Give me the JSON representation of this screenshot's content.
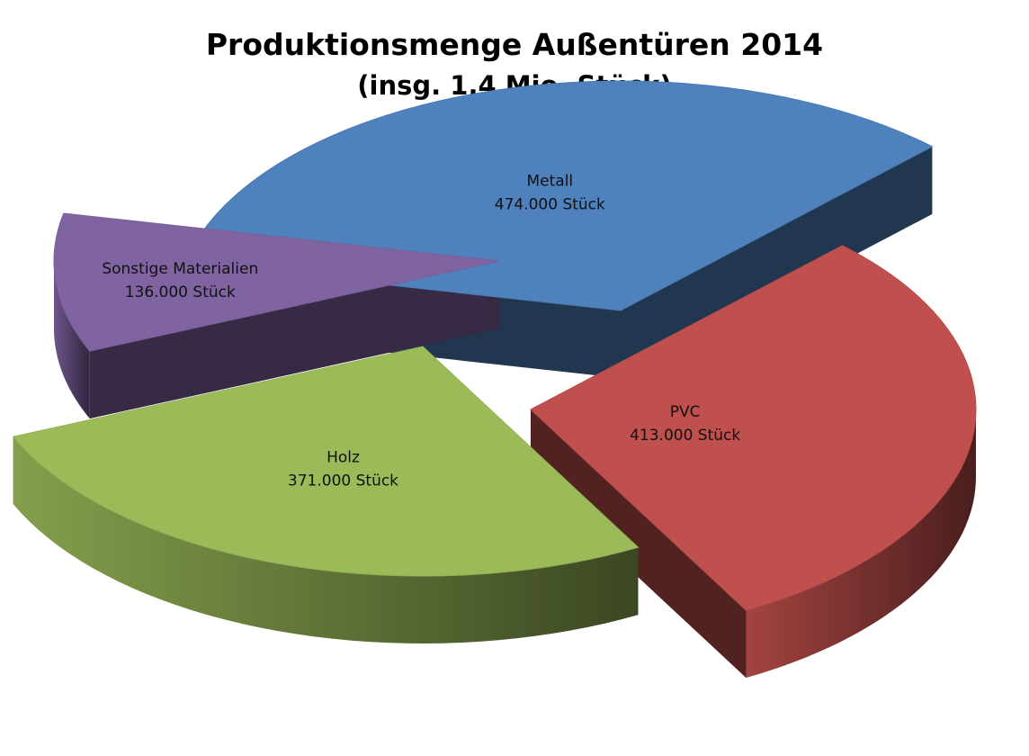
{
  "chart_data": {
    "type": "pie",
    "title": "Produktionsmenge Außentüren 2014",
    "subtitle": "(insg. 1,4 Mio. Stück)",
    "slices": [
      {
        "id": "metall",
        "name": "Metall",
        "value": 474000,
        "value_label": "474.000 Stück",
        "color": "#4f81bd"
      },
      {
        "id": "pvc",
        "name": "PVC",
        "value": 413000,
        "value_label": "413.000 Stück",
        "color": "#c0504d"
      },
      {
        "id": "holz",
        "name": "Holz",
        "value": 371000,
        "value_label": "371.000 Stück",
        "color": "#9bbb59"
      },
      {
        "id": "sonstige",
        "name": "Sonstige Materialien",
        "value": 136000,
        "value_label": "136.000 Stück",
        "color": "#8064a2"
      }
    ],
    "exploded": true,
    "style": "3d"
  }
}
